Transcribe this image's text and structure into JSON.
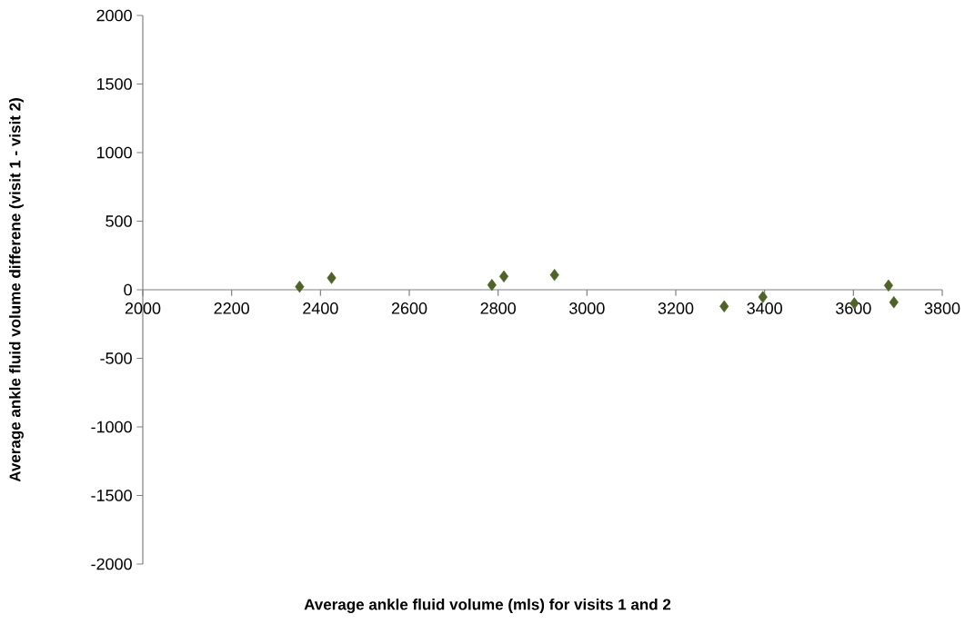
{
  "chart_data": {
    "type": "scatter",
    "xlabel": "Average ankle fluid volume (mls) for visits 1 and 2",
    "ylabel": "Average ankle fluid volume differene (visit 1 - visit 2)",
    "x": [
      2353,
      2425,
      2786,
      2813,
      2927,
      3309,
      3396,
      3602,
      3679,
      3691
    ],
    "values": [
      22,
      86,
      35,
      97,
      108,
      -121,
      -53,
      -99,
      31,
      -91
    ],
    "color": "#4f6228",
    "marker": "diamond",
    "xlim": [
      2000,
      3800
    ],
    "xticks": [
      2000,
      2200,
      2400,
      2600,
      2800,
      3000,
      3200,
      3400,
      3600,
      3800
    ],
    "ylim": [
      -2000,
      2000
    ],
    "yticks": [
      -2000,
      -1500,
      -1000,
      -500,
      0,
      500,
      1000,
      1500,
      2000
    ]
  }
}
